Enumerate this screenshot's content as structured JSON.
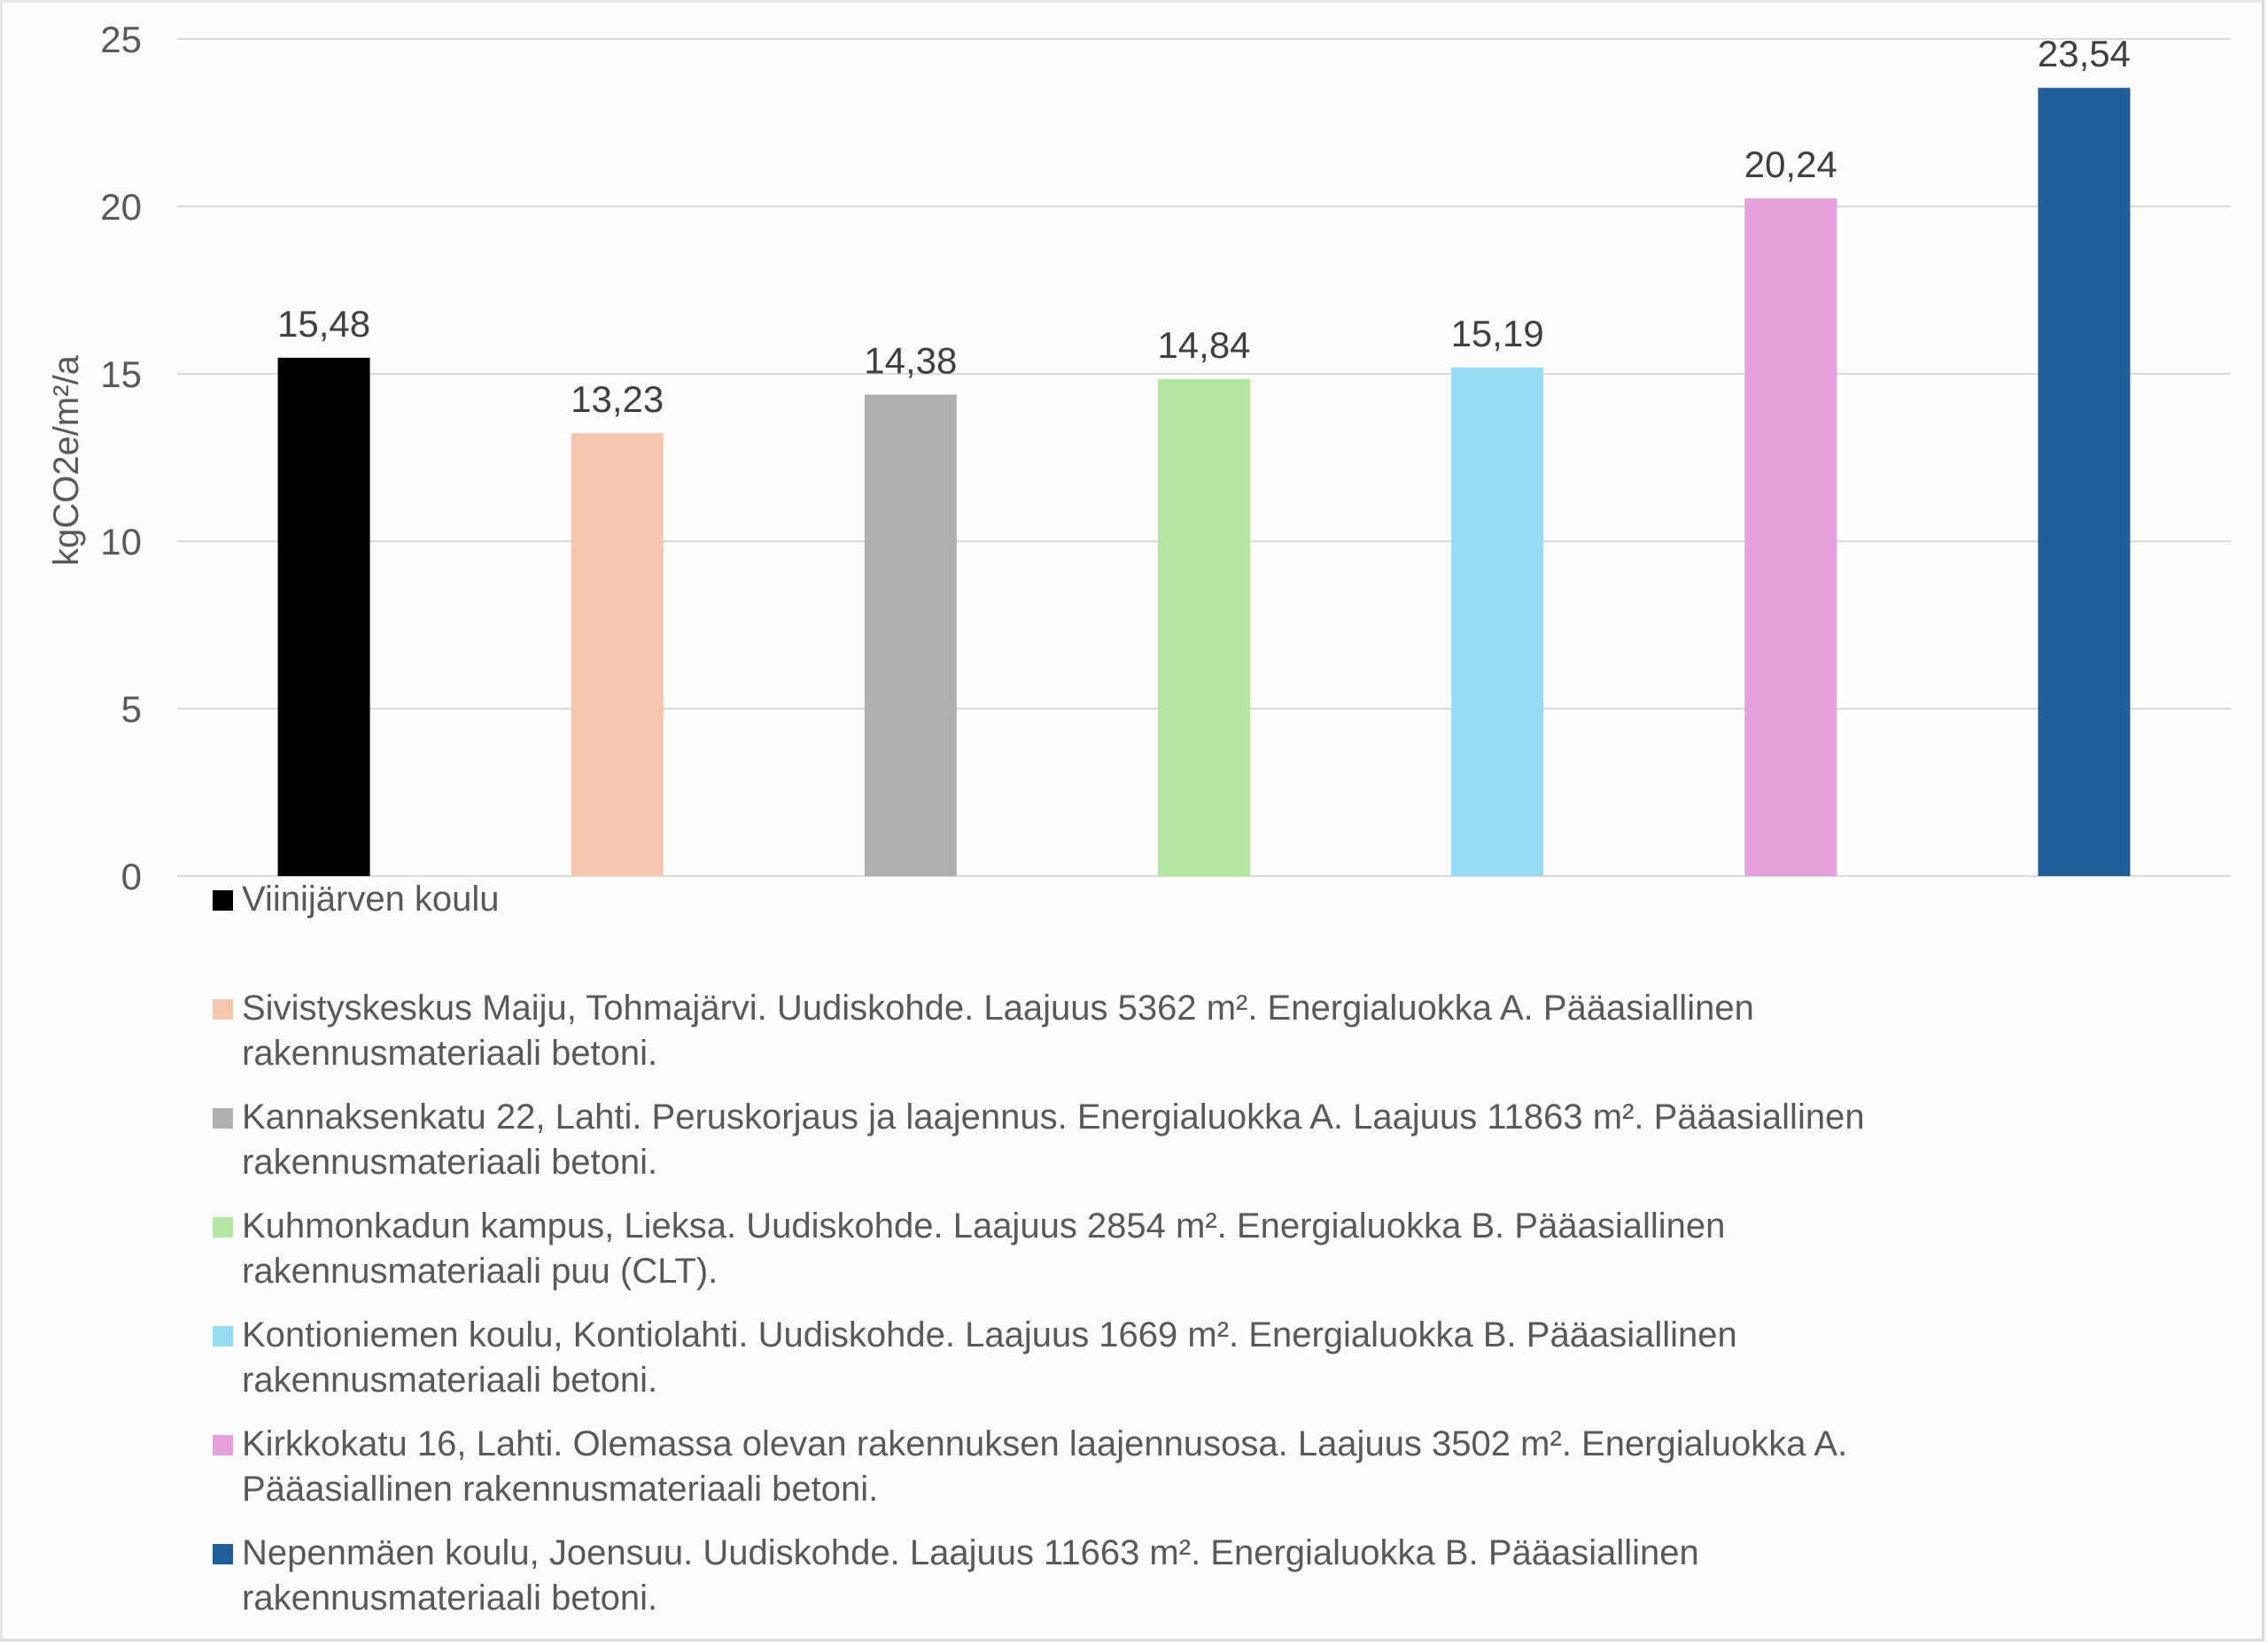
{
  "chart_data": {
    "type": "bar",
    "title": "",
    "xlabel": "",
    "ylabel": "kgCO2e/m²/a",
    "ylim": [
      0,
      25
    ],
    "yticks": [
      0,
      5,
      10,
      15,
      20,
      25
    ],
    "ytick_labels": [
      "0",
      "5",
      "10",
      "15",
      "20",
      "25"
    ],
    "grid": true,
    "legend_position": "bottom",
    "categories": [
      "Viinijärven koulu",
      "Sivistyskeskus Maiju, Tohmajärvi. Uudiskohde. Laajuus 5362 m². Energialuokka A. Pääasiallinen rakennusmateriaali betoni.",
      "Kannaksenkatu 22, Lahti. Peruskorjaus ja laajennus. Energialuokka A. Laajuus 11863 m². Pääasiallinen rakennusmateriaali betoni.",
      "Kuhmonkadun kampus, Lieksa. Uudiskohde. Laajuus 2854 m². Energialuokka B. Pääasiallinen rakennusmateriaali puu (CLT).",
      "Kontioniemen koulu, Kontiolahti. Uudiskohde. Laajuus 1669 m². Energialuokka B. Pääasiallinen rakennusmateriaali betoni.",
      "Kirkkokatu 16, Lahti. Olemassa olevan rakennuksen laajennusosa. Laajuus 3502 m². Energialuokka A. Pääasiallinen rakennusmateriaali betoni.",
      "Nepenmäen koulu, Joensuu. Uudiskohde. Laajuus 11663 m². Energialuokka B. Pääasiallinen rakennusmateriaali betoni."
    ],
    "values": [
      15.48,
      13.23,
      14.38,
      14.84,
      15.19,
      20.24,
      23.54
    ],
    "value_labels": [
      "15,48",
      "13,23",
      "14,38",
      "14,84",
      "15,19",
      "20,24",
      "23,54"
    ],
    "colors": [
      "#000000",
      "#f5c7ae",
      "#afafaf",
      "#b5e5a3",
      "#97dbf5",
      "#e5a1dc",
      "#205e99"
    ]
  },
  "legend": {
    "items": [
      {
        "line1": "Viinijärven koulu",
        "line2": ""
      },
      {
        "line1": "Sivistyskeskus Maiju, Tohmajärvi. Uudiskohde. Laajuus 5362 m². Energialuokka A. Pääasiallinen",
        "line2": "rakennusmateriaali betoni."
      },
      {
        "line1": "Kannaksenkatu 22, Lahti. Peruskorjaus ja laajennus. Energialuokka A. Laajuus 11863 m². Pääasiallinen",
        "line2": "rakennusmateriaali betoni."
      },
      {
        "line1": "Kuhmonkadun kampus, Lieksa. Uudiskohde. Laajuus 2854 m². Energialuokka B. Pääasiallinen",
        "line2": "rakennusmateriaali puu (CLT)."
      },
      {
        "line1": "Kontioniemen koulu, Kontiolahti. Uudiskohde. Laajuus 1669 m². Energialuokka B. Pääasiallinen",
        "line2": "rakennusmateriaali betoni."
      },
      {
        "line1": "Kirkkokatu 16, Lahti. Olemassa olevan rakennuksen laajennusosa. Laajuus 3502 m². Energialuokka A.",
        "line2": "Pääasiallinen rakennusmateriaali betoni."
      },
      {
        "line1": "Nepenmäen koulu, Joensuu. Uudiskohde. Laajuus 11663 m². Energialuokka B. Pääasiallinen",
        "line2": "rakennusmateriaali betoni."
      }
    ]
  }
}
